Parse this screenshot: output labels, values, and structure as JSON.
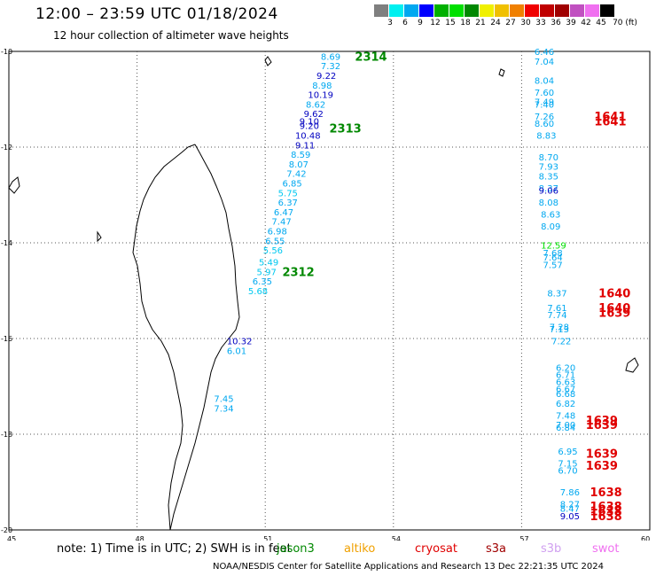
{
  "title": "12:00 – 23:59 UTC 01/18/2024",
  "subtitle": "12 hour collection of altimeter wave heights",
  "colorbar": {
    "colors": [
      "#7f7f7f",
      "#00f0f0",
      "#00a8f0",
      "#0000ff",
      "#00b000",
      "#00e000",
      "#008800",
      "#f0f000",
      "#f0c000",
      "#f08000",
      "#f00000",
      "#c00000",
      "#a00000",
      "#c050c0",
      "#f070f0",
      "#000000"
    ],
    "labels": [
      "3",
      "6",
      "9",
      "12",
      "15",
      "18",
      "21",
      "24",
      "27",
      "30",
      "33",
      "36",
      "39",
      "42",
      "45",
      "70 (ft)"
    ]
  },
  "axes": {
    "lon_ticks": [
      "45",
      "48",
      "51",
      "54",
      "57",
      "60"
    ],
    "lat_ticks": [
      "-10",
      "-12",
      "-14",
      "-16",
      "-18",
      "-20"
    ]
  },
  "tracks": [
    {
      "label": "2314",
      "color": "#008800",
      "lat": -10.1,
      "lon": 53.1
    },
    {
      "label": "2313",
      "color": "#008800",
      "lat": -11.6,
      "lon": 52.5
    },
    {
      "label": "2312",
      "color": "#008800",
      "lat": -14.6,
      "lon": 51.4
    },
    {
      "label": "1641",
      "color": "#e00000",
      "lat": -11.35,
      "lon": 58.7
    },
    {
      "label": "1641",
      "color": "#e00000",
      "lat": -11.45,
      "lon": 58.7
    },
    {
      "label": "1640",
      "color": "#e00000",
      "lat": -15.05,
      "lon": 58.8
    },
    {
      "label": "1640",
      "color": "#e00000",
      "lat": -15.35,
      "lon": 58.8
    },
    {
      "label": "1639",
      "color": "#e00000",
      "lat": -15.45,
      "lon": 58.8
    },
    {
      "label": "1639",
      "color": "#e00000",
      "lat": -17.7,
      "lon": 58.5
    },
    {
      "label": "1639",
      "color": "#e00000",
      "lat": -17.8,
      "lon": 58.5
    },
    {
      "label": "1639",
      "color": "#e00000",
      "lat": -18.4,
      "lon": 58.5
    },
    {
      "label": "1639",
      "color": "#e00000",
      "lat": -18.65,
      "lon": 58.5
    },
    {
      "label": "1638",
      "color": "#e00000",
      "lat": -19.2,
      "lon": 58.6
    },
    {
      "label": "1638",
      "color": "#e00000",
      "lat": -19.5,
      "lon": 58.6
    },
    {
      "label": "1638",
      "color": "#e00000",
      "lat": -19.6,
      "lon": 58.6
    },
    {
      "label": "1638",
      "color": "#e00000",
      "lat": -19.7,
      "lon": 58.6
    }
  ],
  "readings": [
    {
      "v": "8.69",
      "lat": -10.1,
      "lon": 52.3,
      "c": "#00a8f0"
    },
    {
      "v": "7.32",
      "lat": -10.3,
      "lon": 52.3,
      "c": "#00a8f0"
    },
    {
      "v": "9.22",
      "lat": -10.5,
      "lon": 52.2,
      "c": "#0000c0"
    },
    {
      "v": "8.98",
      "lat": -10.7,
      "lon": 52.1,
      "c": "#00a8f0"
    },
    {
      "v": "10.19",
      "lat": -10.9,
      "lon": 52.0,
      "c": "#0000c0"
    },
    {
      "v": "8.62",
      "lat": -11.1,
      "lon": 51.95,
      "c": "#00a8f0"
    },
    {
      "v": "9.62",
      "lat": -11.3,
      "lon": 51.9,
      "c": "#0000c0"
    },
    {
      "v": "9.10",
      "lat": -11.45,
      "lon": 51.8,
      "c": "#0000c0"
    },
    {
      "v": "9.20",
      "lat": -11.55,
      "lon": 51.8,
      "c": "#0000c0"
    },
    {
      "v": "10.48",
      "lat": -11.75,
      "lon": 51.7,
      "c": "#0000c0"
    },
    {
      "v": "9.11",
      "lat": -11.95,
      "lon": 51.7,
      "c": "#0000c0"
    },
    {
      "v": "8.59",
      "lat": -12.15,
      "lon": 51.6,
      "c": "#00a8f0"
    },
    {
      "v": "8.07",
      "lat": -12.35,
      "lon": 51.55,
      "c": "#00a8f0"
    },
    {
      "v": "7.42",
      "lat": -12.55,
      "lon": 51.5,
      "c": "#00a8f0"
    },
    {
      "v": "6.85",
      "lat": -12.75,
      "lon": 51.4,
      "c": "#00a8f0"
    },
    {
      "v": "5.75",
      "lat": -12.95,
      "lon": 51.3,
      "c": "#00c8f0"
    },
    {
      "v": "6.37",
      "lat": -13.15,
      "lon": 51.3,
      "c": "#00a8f0"
    },
    {
      "v": "6.47",
      "lat": -13.35,
      "lon": 51.2,
      "c": "#00a8f0"
    },
    {
      "v": "7.47",
      "lat": -13.55,
      "lon": 51.15,
      "c": "#00a8f0"
    },
    {
      "v": "6.98",
      "lat": -13.75,
      "lon": 51.05,
      "c": "#00a8f0"
    },
    {
      "v": "6.55",
      "lat": -13.95,
      "lon": 51.0,
      "c": "#00a8f0"
    },
    {
      "v": "5.56",
      "lat": -14.15,
      "lon": 50.95,
      "c": "#00c8f0"
    },
    {
      "v": "5.49",
      "lat": -14.4,
      "lon": 50.85,
      "c": "#00c8f0"
    },
    {
      "v": "5.97",
      "lat": -14.6,
      "lon": 50.8,
      "c": "#00c8f0"
    },
    {
      "v": "6.35",
      "lat": -14.8,
      "lon": 50.7,
      "c": "#00a8f0"
    },
    {
      "v": "5.68",
      "lat": -15.0,
      "lon": 50.6,
      "c": "#00c8f0"
    },
    {
      "v": "10.32",
      "lat": -16.05,
      "lon": 50.1,
      "c": "#0000c0"
    },
    {
      "v": "6.01",
      "lat": -16.25,
      "lon": 50.1,
      "c": "#00a8f0"
    },
    {
      "v": "7.45",
      "lat": -17.25,
      "lon": 49.8,
      "c": "#00a8f0"
    },
    {
      "v": "7.34",
      "lat": -17.45,
      "lon": 49.8,
      "c": "#00a8f0"
    },
    {
      "v": "6.46",
      "lat": -10.0,
      "lon": 57.3,
      "c": "#00a8f0"
    },
    {
      "v": "7.04",
      "lat": -10.2,
      "lon": 57.3,
      "c": "#00a8f0"
    },
    {
      "v": "8.04",
      "lat": -10.6,
      "lon": 57.3,
      "c": "#00a8f0"
    },
    {
      "v": "7.60",
      "lat": -10.85,
      "lon": 57.3,
      "c": "#00a8f0"
    },
    {
      "v": "7.49",
      "lat": -11.05,
      "lon": 57.3,
      "c": "#00a8f0"
    },
    {
      "v": "7.40",
      "lat": -11.1,
      "lon": 57.3,
      "c": "#00a8f0"
    },
    {
      "v": "7.26",
      "lat": -11.35,
      "lon": 57.3,
      "c": "#00a8f0"
    },
    {
      "v": "8.60",
      "lat": -11.5,
      "lon": 57.3,
      "c": "#00a8f0"
    },
    {
      "v": "8.83",
      "lat": -11.75,
      "lon": 57.35,
      "c": "#00a8f0"
    },
    {
      "v": "8.70",
      "lat": -12.2,
      "lon": 57.4,
      "c": "#00a8f0"
    },
    {
      "v": "7.93",
      "lat": -12.4,
      "lon": 57.4,
      "c": "#00a8f0"
    },
    {
      "v": "8.35",
      "lat": -12.6,
      "lon": 57.4,
      "c": "#00a8f0"
    },
    {
      "v": "8.37",
      "lat": -12.85,
      "lon": 57.4,
      "c": "#00a8f0"
    },
    {
      "v": "9.06",
      "lat": -12.9,
      "lon": 57.4,
      "c": "#0000c0"
    },
    {
      "v": "8.08",
      "lat": -13.15,
      "lon": 57.4,
      "c": "#00a8f0"
    },
    {
      "v": "8.63",
      "lat": -13.4,
      "lon": 57.45,
      "c": "#00a8f0"
    },
    {
      "v": "8.09",
      "lat": -13.65,
      "lon": 57.45,
      "c": "#00a8f0"
    },
    {
      "v": "12.59",
      "lat": -14.05,
      "lon": 57.45,
      "c": "#00e000"
    },
    {
      "v": "7.68",
      "lat": -14.2,
      "lon": 57.5,
      "c": "#00a8f0"
    },
    {
      "v": "7.64",
      "lat": -14.3,
      "lon": 57.5,
      "c": "#00a8f0"
    },
    {
      "v": "7.57",
      "lat": -14.45,
      "lon": 57.5,
      "c": "#00a8f0"
    },
    {
      "v": "8.37",
      "lat": -15.05,
      "lon": 57.6,
      "c": "#00a8f0"
    },
    {
      "v": "7.61",
      "lat": -15.35,
      "lon": 57.6,
      "c": "#00a8f0"
    },
    {
      "v": "7.74",
      "lat": -15.5,
      "lon": 57.6,
      "c": "#00a8f0"
    },
    {
      "v": "7.28",
      "lat": -15.75,
      "lon": 57.65,
      "c": "#00a8f0"
    },
    {
      "v": "7.13",
      "lat": -15.8,
      "lon": 57.65,
      "c": "#00a8f0"
    },
    {
      "v": "7.22",
      "lat": -16.05,
      "lon": 57.7,
      "c": "#00a8f0"
    },
    {
      "v": "6.20",
      "lat": -16.6,
      "lon": 57.8,
      "c": "#00a8f0"
    },
    {
      "v": "6.71",
      "lat": -16.75,
      "lon": 57.8,
      "c": "#00a8f0"
    },
    {
      "v": "6.63",
      "lat": -16.9,
      "lon": 57.8,
      "c": "#00a8f0"
    },
    {
      "v": "6.67",
      "lat": -17.05,
      "lon": 57.8,
      "c": "#00a8f0"
    },
    {
      "v": "6.68",
      "lat": -17.15,
      "lon": 57.8,
      "c": "#00a8f0"
    },
    {
      "v": "6.82",
      "lat": -17.35,
      "lon": 57.8,
      "c": "#00a8f0"
    },
    {
      "v": "7.48",
      "lat": -17.6,
      "lon": 57.8,
      "c": "#00a8f0"
    },
    {
      "v": "7.00",
      "lat": -17.8,
      "lon": 57.8,
      "c": "#00a8f0"
    },
    {
      "v": "6.84",
      "lat": -17.85,
      "lon": 57.8,
      "c": "#00a8f0"
    },
    {
      "v": "6.95",
      "lat": -18.35,
      "lon": 57.85,
      "c": "#00a8f0"
    },
    {
      "v": "7.15",
      "lat": -18.6,
      "lon": 57.85,
      "c": "#00a8f0"
    },
    {
      "v": "6.70",
      "lat": -18.75,
      "lon": 57.85,
      "c": "#00a8f0"
    },
    {
      "v": "7.86",
      "lat": -19.2,
      "lon": 57.9,
      "c": "#00a8f0"
    },
    {
      "v": "8.27",
      "lat": -19.45,
      "lon": 57.9,
      "c": "#00a8f0"
    },
    {
      "v": "8.47",
      "lat": -19.55,
      "lon": 57.9,
      "c": "#00a8f0"
    },
    {
      "v": "9.05",
      "lat": -19.7,
      "lon": 57.9,
      "c": "#0000c0"
    }
  ],
  "sat_legend": [
    {
      "name": "jason3",
      "color": "#008800",
      "x": 312
    },
    {
      "name": "altiko",
      "color": "#f0a000",
      "x": 388
    },
    {
      "name": "cryosat",
      "color": "#e00000",
      "x": 468
    },
    {
      "name": "s3a",
      "color": "#a00000",
      "x": 548
    },
    {
      "name": "s3b",
      "color": "#d0a0f0",
      "x": 610
    },
    {
      "name": "swot",
      "color": "#f070f0",
      "x": 668
    }
  ],
  "note": "note:  1) Time is in UTC;  2) SWH is in feet",
  "footer": "NOAA/NESDIS Center for Satellite Applications and Research    13 Dec 22:21:35 UTC 2024"
}
